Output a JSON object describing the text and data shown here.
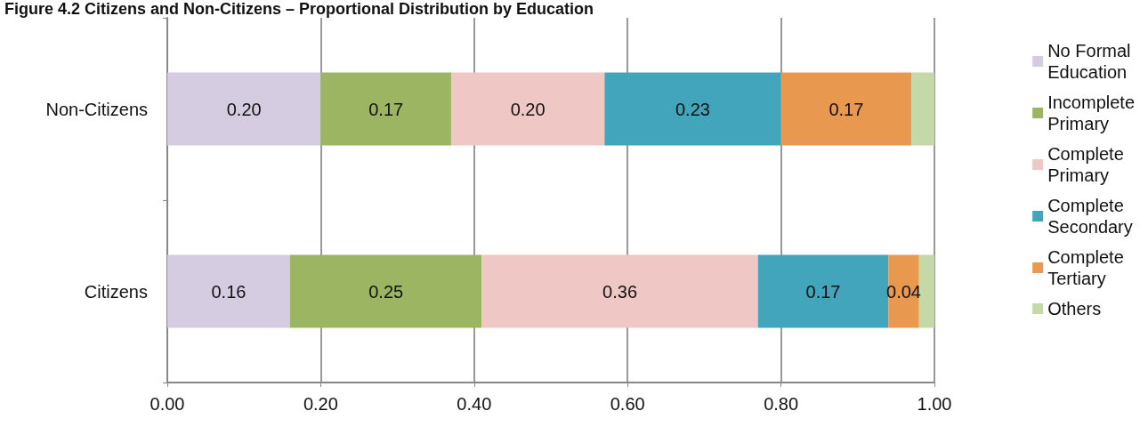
{
  "chart_data": {
    "type": "bar",
    "title": "Figure 4.2 Citizens and Non-Citizens – Proportional Distribution by Education",
    "orientation": "horizontal",
    "stacked": true,
    "categories": [
      "Non-Citizens",
      "Citizens"
    ],
    "series": [
      {
        "name": "No Formal Education",
        "color": "#d5cce2",
        "values": [
          0.2,
          0.16
        ],
        "value_labels": [
          "0.20",
          "0.16"
        ]
      },
      {
        "name": "Incomplete Primary",
        "color": "#9bb562",
        "values": [
          0.17,
          0.25
        ],
        "value_labels": [
          "0.17",
          "0.25"
        ]
      },
      {
        "name": "Complete Primary",
        "color": "#efc8c6",
        "values": [
          0.2,
          0.36
        ],
        "value_labels": [
          "0.20",
          "0.36"
        ]
      },
      {
        "name": "Complete Secondary",
        "color": "#42a5bb",
        "values": [
          0.23,
          0.17
        ],
        "value_labels": [
          "0.23",
          "0.17"
        ]
      },
      {
        "name": "Complete Tertiary",
        "color": "#e8994f",
        "values": [
          0.17,
          0.04
        ],
        "value_labels": [
          "0.17",
          "0.04"
        ]
      },
      {
        "name": "Others",
        "color": "#c5d8a8",
        "values": [
          0.03,
          0.02
        ],
        "value_labels": [
          null,
          null
        ]
      }
    ],
    "xlim": [
      0,
      1
    ],
    "xticks": [
      {
        "value": 0,
        "label": "0.00"
      },
      {
        "value": 0.2,
        "label": "0.20"
      },
      {
        "value": 0.4,
        "label": "0.40"
      },
      {
        "value": 0.6,
        "label": "0.60"
      },
      {
        "value": 0.8,
        "label": "0.80"
      },
      {
        "value": 1,
        "label": "1.00"
      }
    ],
    "grid": "x",
    "legend": "right"
  }
}
